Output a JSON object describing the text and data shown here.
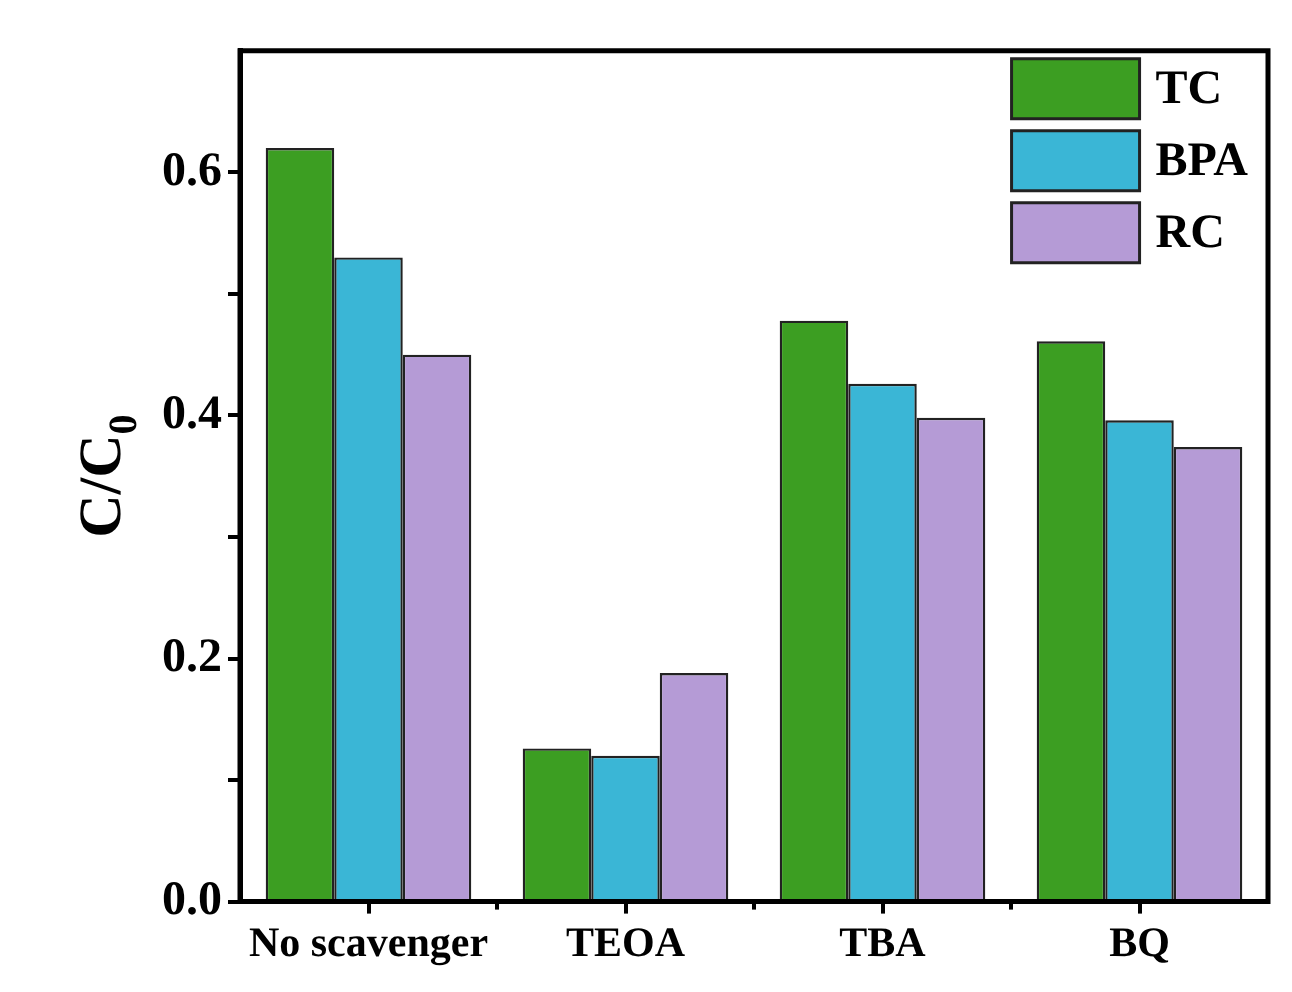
{
  "chart_data": {
    "type": "bar",
    "ylabel": "C/C$_{0}$",
    "categories": [
      "No scavenger",
      "TEOA",
      "TBA",
      "BQ"
    ],
    "series": [
      {
        "name": "TC",
        "color": "#3c9e22",
        "values": [
          0.62,
          0.126,
          0.478,
          0.461
        ]
      },
      {
        "name": "BPA",
        "color": "#3ab6d6",
        "values": [
          0.53,
          0.12,
          0.426,
          0.396
        ]
      },
      {
        "name": "RC",
        "color": "#b59bd6",
        "values": [
          0.45,
          0.188,
          0.398,
          0.374
        ]
      }
    ],
    "ylim": [
      0,
      0.7
    ],
    "yticks": [
      {
        "value": 0,
        "label": "0.0"
      },
      {
        "value": 0.1,
        "label": null
      },
      {
        "value": 0.2,
        "label": "0.2"
      },
      {
        "value": 0.3,
        "label": null
      },
      {
        "value": 0.4,
        "label": "0.4"
      },
      {
        "value": 0.5,
        "label": null
      },
      {
        "value": 0.6,
        "label": "0.6"
      }
    ],
    "grid": false,
    "legend": "top right"
  }
}
